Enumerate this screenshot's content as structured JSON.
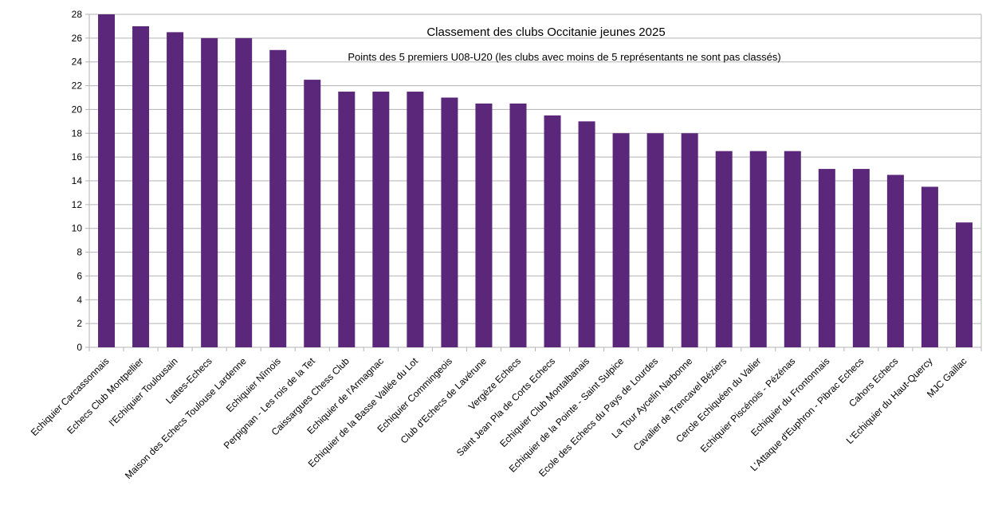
{
  "chart_data": {
    "type": "bar",
    "title": "Classement des clubs Occitanie jeunes 2025",
    "subtitle": "Points des 5 premiers U08-U20 (les clubs avec moins de 5 représentants ne sont pas classés)",
    "xlabel": "",
    "ylabel": "",
    "ylim": [
      0,
      28
    ],
    "ytick_step": 2,
    "grid": true,
    "legend": "none",
    "color": "#5b277a",
    "categories": [
      "Echiquier Carcassonnais",
      "Echecs Club Montpellier",
      "l'Echiquier Toulousain",
      "Lattes-Echecs",
      "Maison des Echecs Toulouse Lardenne",
      "Echiquier Nîmois",
      "Perpignan - Les rois de la Tet",
      "Caissargues Chess Club",
      "Echiquier de l'Armagnac",
      "Echiquier de la Basse Vallée du Lot",
      "Echiquier Commingeois",
      "Club d'Echecs de Lavérune",
      "Vergèze Echecs",
      "Saint Jean Pla de Corts Echecs",
      "Echiquier Club Montalbanais",
      "Echiquier de la Pointe - Saint Sulpice",
      "Ecole des Echecs du Pays de Lourdes",
      "La Tour Aycelin Narbonne",
      "Cavalier de Trencavel Béziers",
      "Cercle Echiquéen du Valier",
      "Echiquier Piscénois - Pézénas",
      "Echiquier du Frontonnais",
      "L'Attaque d'Euphron - Pibrac Echecs",
      "Cahors Echecs",
      "L'Echiquier du Haut-Quercy",
      "MJC Gaillac"
    ],
    "values": [
      28,
      27,
      26.5,
      26,
      26,
      25,
      22.5,
      21.5,
      21.5,
      21.5,
      21,
      20.5,
      20.5,
      19.5,
      19,
      18,
      18,
      18,
      16.5,
      16.5,
      16.5,
      15,
      15,
      14.5,
      13.5,
      10.5
    ]
  }
}
